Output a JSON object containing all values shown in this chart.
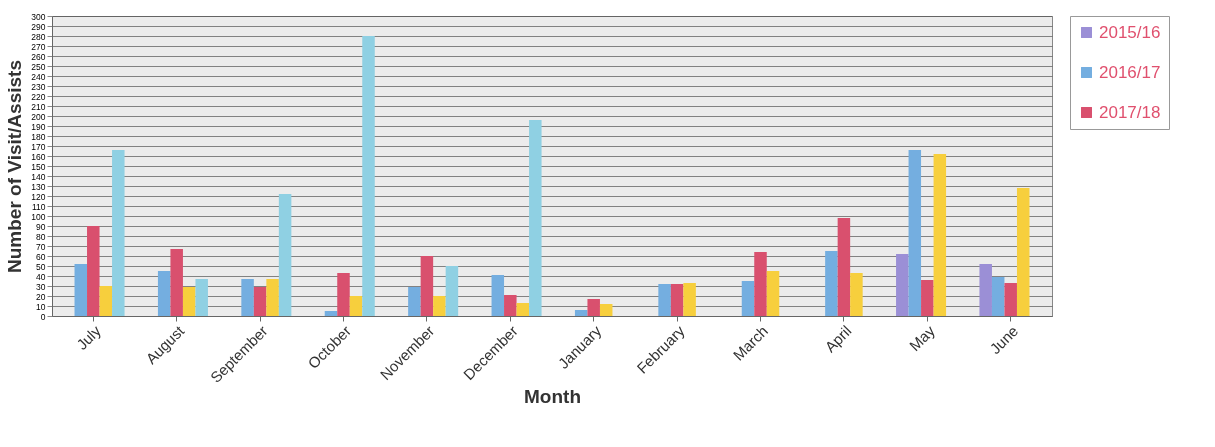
{
  "chart_data": {
    "type": "bar",
    "xlabel": "Month",
    "ylabel": "Number of Visit/Assists",
    "categories": [
      "July",
      "August",
      "September",
      "October",
      "November",
      "December",
      "January",
      "February",
      "March",
      "April",
      "May",
      "June"
    ],
    "series": [
      {
        "name": "2015/16",
        "color": "#9b8fd6",
        "values": [
          null,
          null,
          null,
          null,
          null,
          null,
          null,
          null,
          null,
          null,
          62,
          52
        ]
      },
      {
        "name": "2016/17",
        "color": "#74aee0",
        "values": [
          52,
          45,
          37,
          5,
          29,
          41,
          6,
          32,
          35,
          65,
          166,
          39
        ]
      },
      {
        "name": "2017/18",
        "color": "#d9506e",
        "values": [
          90,
          67,
          29,
          43,
          60,
          21,
          17,
          32,
          64,
          98,
          36,
          33
        ]
      },
      {
        "color": "#f7cf3d",
        "values": [
          30,
          29,
          37,
          20,
          20,
          13,
          12,
          33,
          45,
          43,
          162,
          128
        ]
      },
      {
        "color": "#8fd0e3",
        "values": [
          166,
          37,
          122,
          280,
          50,
          196,
          null,
          null,
          null,
          null,
          null,
          null
        ]
      }
    ],
    "ylim": [
      0,
      300
    ],
    "yticks": [
      0,
      10,
      20,
      30,
      40,
      50,
      60,
      70,
      80,
      90,
      100,
      110,
      120,
      130,
      140,
      150,
      160,
      170,
      180,
      190,
      200,
      210,
      220,
      230,
      240,
      250,
      260,
      270,
      280,
      290,
      300
    ],
    "grid": "y",
    "legend": "right"
  }
}
